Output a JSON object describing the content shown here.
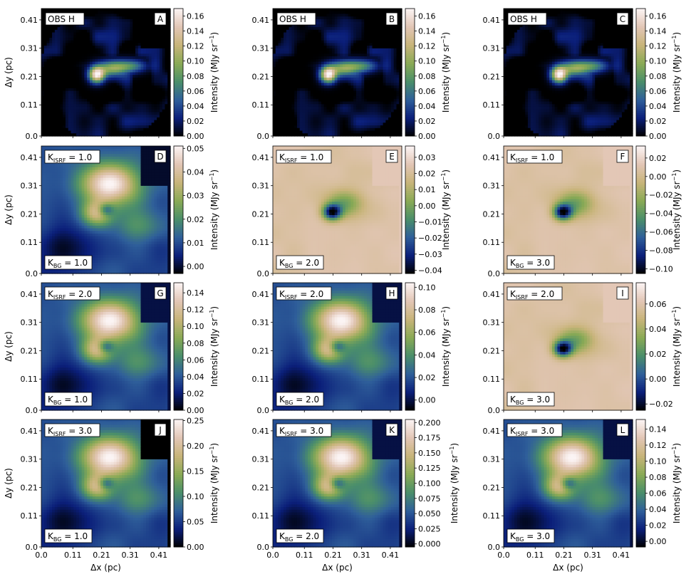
{
  "figure": {
    "xlabel": "Δx (pc)",
    "ylabel": "Δy (pc)",
    "cbar_label_prefix": "Intensity (MJy sr",
    "cbar_label_exp": "−1",
    "cbar_label_suffix": ")",
    "k_isrf_prefix": "K",
    "k_isrf_sub": "ISRF",
    "k_bg_prefix": "K",
    "k_bg_sub": "BG",
    "position_ticks": [
      "0.0",
      "0.11",
      "0.21",
      "0.31",
      "0.41"
    ],
    "colormap": "gist_earth",
    "colormap_stops": [
      "#000000",
      "#0b1f7a",
      "#2f5f9a",
      "#4b8f6a",
      "#8aaa55",
      "#c8b47a",
      "#e2c6b5",
      "#fbf4f4"
    ]
  },
  "chart_data": [
    {
      "type": "heatmap",
      "letter": "A",
      "kind": "obs",
      "title": "OBS H",
      "cbar_ticks": [
        "0.00",
        "0.02",
        "0.04",
        "0.06",
        "0.08",
        "0.10",
        "0.12",
        "0.14",
        "0.16"
      ],
      "cbar_range": [
        0.0,
        0.17
      ]
    },
    {
      "type": "heatmap",
      "letter": "B",
      "kind": "obs",
      "title": "OBS H",
      "cbar_ticks": [
        "0.00",
        "0.02",
        "0.04",
        "0.06",
        "0.08",
        "0.10",
        "0.12",
        "0.14",
        "0.16"
      ],
      "cbar_range": [
        0.0,
        0.17
      ]
    },
    {
      "type": "heatmap",
      "letter": "C",
      "kind": "obs",
      "title": "OBS H",
      "cbar_ticks": [
        "0.00",
        "0.02",
        "0.04",
        "0.06",
        "0.08",
        "0.10",
        "0.12",
        "0.14",
        "0.16"
      ],
      "cbar_range": [
        0.0,
        0.17
      ]
    },
    {
      "type": "heatmap",
      "letter": "D",
      "kind": "model",
      "k_isrf": "1.0",
      "k_bg": "1.0",
      "cbar_ticks": [
        "0.00",
        "0.01",
        "0.02",
        "0.03",
        "0.04",
        "0.05"
      ],
      "cbar_range": [
        -0.003,
        0.051
      ]
    },
    {
      "type": "heatmap",
      "letter": "E",
      "kind": "diff",
      "k_isrf": "1.0",
      "k_bg": "2.0",
      "cbar_ticks": [
        "−0.04",
        "−0.03",
        "−0.02",
        "−0.01",
        "0.00",
        "0.01",
        "0.02",
        "0.03"
      ],
      "cbar_range": [
        -0.042,
        0.037
      ]
    },
    {
      "type": "heatmap",
      "letter": "F",
      "kind": "diff",
      "k_isrf": "1.0",
      "k_bg": "3.0",
      "cbar_ticks": [
        "−0.10",
        "−0.08",
        "−0.06",
        "−0.04",
        "−0.02",
        "0.00",
        "0.02"
      ],
      "cbar_range": [
        -0.105,
        0.033
      ]
    },
    {
      "type": "heatmap",
      "letter": "G",
      "kind": "model",
      "k_isrf": "2.0",
      "k_bg": "1.0",
      "cbar_ticks": [
        "0.00",
        "0.02",
        "0.04",
        "0.06",
        "0.08",
        "0.10",
        "0.12",
        "0.14"
      ],
      "cbar_range": [
        0.0,
        0.152
      ]
    },
    {
      "type": "heatmap",
      "letter": "H",
      "kind": "model",
      "k_isrf": "2.0",
      "k_bg": "2.0",
      "cbar_ticks": [
        "0.00",
        "0.02",
        "0.04",
        "0.06",
        "0.08",
        "0.10"
      ],
      "cbar_range": [
        -0.009,
        0.104
      ]
    },
    {
      "type": "heatmap",
      "letter": "I",
      "kind": "diff",
      "k_isrf": "2.0",
      "k_bg": "3.0",
      "cbar_ticks": [
        "−0.02",
        "0.00",
        "0.02",
        "0.04",
        "0.06"
      ],
      "cbar_range": [
        -0.025,
        0.077
      ]
    },
    {
      "type": "heatmap",
      "letter": "J",
      "kind": "model",
      "k_isrf": "3.0",
      "k_bg": "1.0",
      "cbar_ticks": [
        "0.00",
        "0.05",
        "0.10",
        "0.15",
        "0.20",
        "0.25"
      ],
      "cbar_range": [
        0.0,
        0.252
      ]
    },
    {
      "type": "heatmap",
      "letter": "K",
      "kind": "model",
      "k_isrf": "3.0",
      "k_bg": "2.0",
      "cbar_ticks": [
        "0.000",
        "0.025",
        "0.050",
        "0.075",
        "0.100",
        "0.125",
        "0.150",
        "0.175",
        "0.200"
      ],
      "cbar_range": [
        -0.005,
        0.205
      ]
    },
    {
      "type": "heatmap",
      "letter": "L",
      "kind": "model",
      "k_isrf": "3.0",
      "k_bg": "3.0",
      "cbar_ticks": [
        "0.00",
        "0.02",
        "0.04",
        "0.06",
        "0.08",
        "0.10",
        "0.12",
        "0.14"
      ],
      "cbar_range": [
        -0.007,
        0.152
      ]
    }
  ]
}
